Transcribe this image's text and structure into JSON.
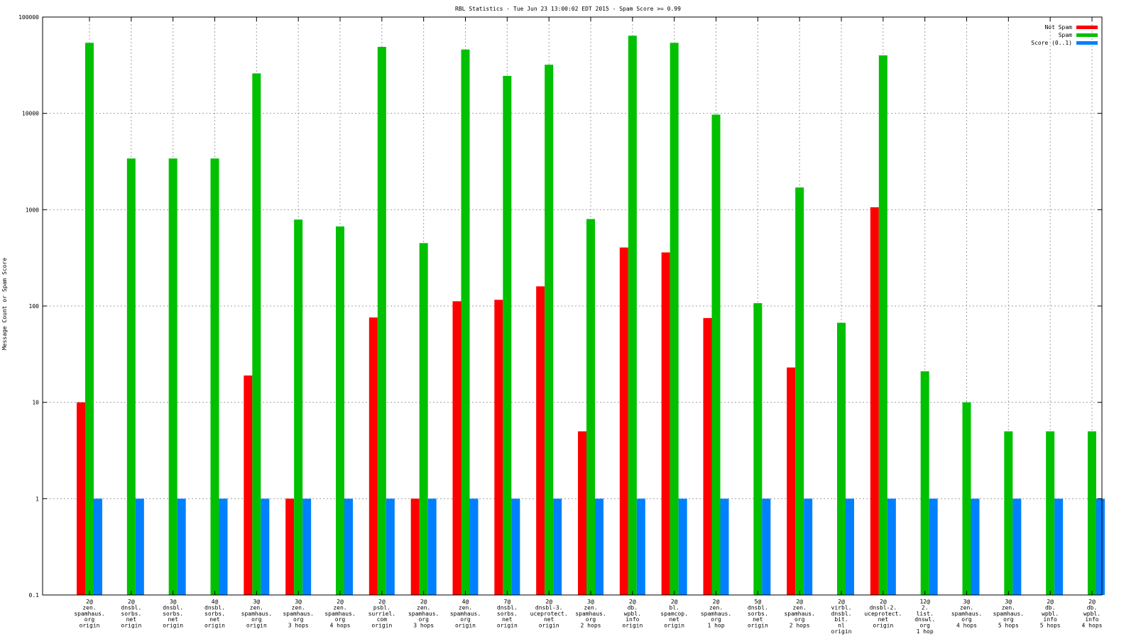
{
  "chart_data": {
    "type": "bar",
    "title": "RBL Statistics - Tue Jun 23 13:00:02 EDT 2015 - Spam Score >= 0.99",
    "ylabel": "Message Count or Spam Score",
    "xlabel": "",
    "yscale": "log",
    "ylim": [
      0.1,
      100000
    ],
    "y_ticks": [
      "0.1",
      "1",
      "10",
      "100",
      "1000",
      "10000",
      "100000"
    ],
    "grid": true,
    "legend_position": "top-right",
    "categories": [
      [
        "2@",
        "zen.",
        "spamhaus.",
        "org",
        "origin"
      ],
      [
        "2@",
        "dnsbl.",
        "sorbs.",
        "net",
        "origin"
      ],
      [
        "3@",
        "dnsbl.",
        "sorbs.",
        "net",
        "origin"
      ],
      [
        "4@",
        "dnsbl.",
        "sorbs.",
        "net",
        "origin"
      ],
      [
        "3@",
        "zen.",
        "spamhaus.",
        "org",
        "origin"
      ],
      [
        "3@",
        "zen.",
        "spamhaus.",
        "org",
        "3 hops"
      ],
      [
        "2@",
        "zen.",
        "spamhaus.",
        "org",
        "4 hops"
      ],
      [
        "2@",
        "psbl.",
        "surriel.",
        "com",
        "origin"
      ],
      [
        "2@",
        "zen.",
        "spamhaus.",
        "org",
        "3 hops"
      ],
      [
        "4@",
        "zen.",
        "spamhaus.",
        "org",
        "origin"
      ],
      [
        "7@",
        "dnsbl.",
        "sorbs.",
        "net",
        "origin"
      ],
      [
        "2@",
        "dnsbl-3.",
        "uceprotect.",
        "net",
        "origin"
      ],
      [
        "3@",
        "zen.",
        "spamhaus.",
        "org",
        "2 hops"
      ],
      [
        "2@",
        "db.",
        "wpbl.",
        "info",
        "origin"
      ],
      [
        "2@",
        "bl.",
        "spamcop.",
        "net",
        "origin"
      ],
      [
        "2@",
        "zen.",
        "spamhaus.",
        "org",
        "1 hop"
      ],
      [
        "5@",
        "dnsbl.",
        "sorbs.",
        "net",
        "origin"
      ],
      [
        "2@",
        "zen.",
        "spamhaus.",
        "org",
        "2 hops"
      ],
      [
        "2@",
        "virbl.",
        "dnsbl.",
        "bit.",
        "nl",
        "origin"
      ],
      [
        "2@",
        "dnsbl-2.",
        "uceprotect.",
        "net",
        "origin"
      ],
      [
        "12@",
        "2.",
        "list.",
        "dnswl.",
        "org",
        "1 hop"
      ],
      [
        "3@",
        "zen.",
        "spamhaus.",
        "org",
        "4 hops"
      ],
      [
        "3@",
        "zen.",
        "spamhaus.",
        "org",
        "5 hops"
      ],
      [
        "2@",
        "db.",
        "wpbl.",
        "info",
        "5 hops"
      ],
      [
        "2@",
        "db.",
        "wpbl.",
        "info",
        "4 hops"
      ]
    ],
    "series": [
      {
        "name": "Not Spam",
        "color": "#ff0000",
        "values": [
          10,
          null,
          null,
          null,
          19,
          1,
          null,
          76,
          1,
          112,
          116,
          160,
          5,
          405,
          360,
          75,
          null,
          23,
          null,
          1060,
          null,
          null,
          null,
          null,
          null
        ]
      },
      {
        "name": "Spam",
        "color": "#00c000",
        "values": [
          54000,
          3400,
          3400,
          3400,
          26000,
          790,
          670,
          49000,
          450,
          46000,
          24500,
          32000,
          800,
          64000,
          54000,
          9700,
          107,
          1700,
          67,
          40000,
          21,
          10,
          5,
          5,
          5
        ]
      },
      {
        "name": "Score (0..1)",
        "color": "#0080ff",
        "values": [
          1,
          1,
          1,
          1,
          1,
          1,
          1,
          1,
          1,
          1,
          1,
          1,
          1,
          1,
          1,
          1,
          1,
          1,
          1,
          1,
          1,
          1,
          1,
          1,
          1
        ]
      }
    ]
  }
}
